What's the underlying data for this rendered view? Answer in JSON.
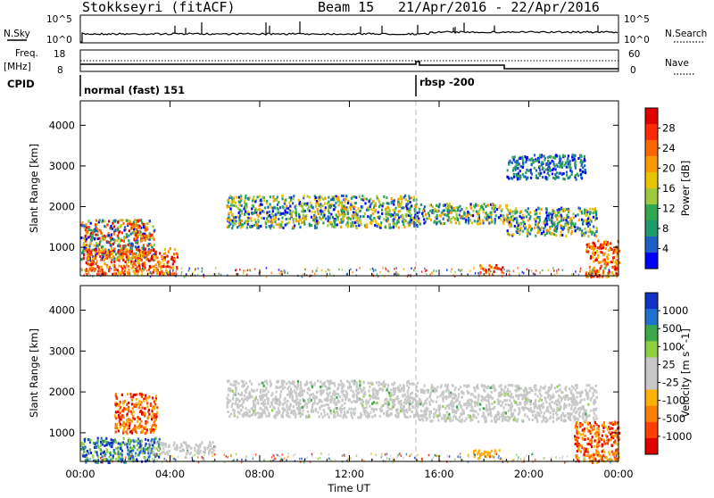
{
  "header": {
    "station": "Stokkseyri (fitACF)",
    "beam": "Beam 15",
    "dates": "21/Apr/2016 - 22/Apr/2016"
  },
  "params_panel": {
    "nsky_label": "N.Sky",
    "nsky_ticks": [
      "10^5",
      "10^0"
    ],
    "nsearch_label": "N.Search",
    "nsearch_ticks": [
      "10^5",
      "10^0"
    ],
    "freq_label": "Freq.",
    "freq_unit": "[MHz]",
    "freq_ticks": [
      "18",
      "8"
    ],
    "nave_label": "Nave",
    "nave_ticks": [
      "60",
      "0"
    ],
    "cpid_label": "CPID",
    "cpid_modes": [
      "normal (fast) 151",
      "rbsp -200"
    ]
  },
  "chart_data": [
    {
      "type": "heatmap",
      "parameter": "Power",
      "ylabel": "Slant Range [km]",
      "yticks": [
        "4000",
        "3000",
        "2000",
        "1000"
      ],
      "ylim": [
        300,
        4600
      ],
      "colorbar_label": "Power [dB]",
      "colorbar_ticks": [
        "28",
        "24",
        "20",
        "16",
        "12",
        "8",
        "4"
      ],
      "colorbar_colors": [
        "#e00000",
        "#ff2a00",
        "#ff6600",
        "#ff9900",
        "#e8c300",
        "#9fc83c",
        "#2fa84f",
        "#1f9a6a",
        "#1f5fc8",
        "#0000ff"
      ],
      "xticks": [
        "00:00",
        "04:00",
        "08:00",
        "12:00",
        "16:00",
        "20:00",
        "00:00"
      ],
      "xrange_hours": [
        0,
        24
      ],
      "mode_change_hour": 15.0,
      "echo_regions": [
        {
          "t": [
            0.0,
            3.3
          ],
          "r": [
            700,
            1700
          ],
          "level": "mixed"
        },
        {
          "t": [
            2.2,
            3.0
          ],
          "r": [
            1200,
            1600
          ],
          "level": "high"
        },
        {
          "t": [
            0.2,
            4.3
          ],
          "r": [
            350,
            1000
          ],
          "level": "high"
        },
        {
          "t": [
            6.5,
            15.0
          ],
          "r": [
            1500,
            2300
          ],
          "level": "mid"
        },
        {
          "t": [
            15.0,
            19.0
          ],
          "r": [
            1600,
            2100
          ],
          "level": "mid"
        },
        {
          "t": [
            19.0,
            23.0
          ],
          "r": [
            1300,
            2000
          ],
          "level": "mid"
        },
        {
          "t": [
            19.0,
            22.5
          ],
          "r": [
            2700,
            3300
          ],
          "level": "low"
        },
        {
          "t": [
            17.8,
            18.8
          ],
          "r": [
            400,
            600
          ],
          "level": "high"
        },
        {
          "t": [
            22.5,
            24.0
          ],
          "r": [
            300,
            1200
          ],
          "level": "high"
        }
      ]
    },
    {
      "type": "heatmap",
      "parameter": "Velocity",
      "ylabel": "Slant Range [km]",
      "yticks": [
        "4000",
        "3000",
        "2000",
        "1000"
      ],
      "ylim": [
        300,
        4600
      ],
      "colorbar_label": "Velocity [m s^-1]",
      "colorbar_ticks": [
        "1000",
        "500",
        "100",
        "25",
        "-25",
        "-100",
        "-500",
        "-1000"
      ],
      "colorbar_colors": [
        "#1030c8",
        "#2070d0",
        "#3da84a",
        "#8fd040",
        "#c8c8c8",
        "#c8c8c8",
        "#ffb000",
        "#ff8000",
        "#ff4000",
        "#e00000"
      ],
      "xticks": [
        "00:00",
        "04:00",
        "08:00",
        "12:00",
        "16:00",
        "20:00",
        "00:00"
      ],
      "xlabel": "Time UT",
      "xrange_hours": [
        0,
        24
      ],
      "mode_change_hour": 15.0,
      "echo_regions": [
        {
          "t": [
            1.5,
            3.4
          ],
          "r": [
            1000,
            2000
          ],
          "level": "away"
        },
        {
          "t": [
            0.0,
            3.5
          ],
          "r": [
            300,
            900
          ],
          "level": "toward"
        },
        {
          "t": [
            3.0,
            6.0
          ],
          "r": [
            500,
            800
          ],
          "level": "ground"
        },
        {
          "t": [
            6.5,
            15.0
          ],
          "r": [
            1400,
            2300
          ],
          "level": "ground"
        },
        {
          "t": [
            15.0,
            23.0
          ],
          "r": [
            1300,
            2200
          ],
          "level": "ground"
        },
        {
          "t": [
            17.5,
            18.7
          ],
          "r": [
            400,
            600
          ],
          "level": "away_small"
        },
        {
          "t": [
            22.0,
            24.0
          ],
          "r": [
            300,
            1300
          ],
          "level": "away"
        }
      ]
    }
  ]
}
